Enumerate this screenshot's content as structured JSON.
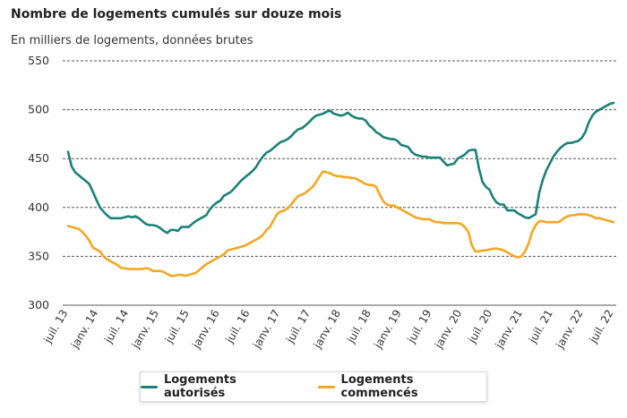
{
  "title": "Nombre de logements cumulés sur douze mois",
  "subtitle": "En milliers de logements, données brutes",
  "colors": {
    "autorises": "#1a8177",
    "commences": "#f5a623",
    "grid": "#555555"
  },
  "chart_data": {
    "type": "line",
    "ylim": [
      300,
      550
    ],
    "yticks": [
      "550",
      "500",
      "450",
      "400",
      "350",
      "300"
    ],
    "xticks": [
      "juil. 13",
      "janv. 14",
      "juil. 14",
      "janv. 15",
      "juil. 15",
      "janv. 16",
      "juil. 16",
      "janv. 17",
      "juil. 17",
      "janv. 18",
      "juil. 18",
      "janv. 19",
      "juil. 19",
      "janv. 20",
      "juil. 20",
      "janv. 21",
      "juil. 21",
      "janv. 22",
      "juil. 22"
    ],
    "grid": "horizontal dashed",
    "legend_position": "bottom",
    "series": [
      {
        "name": "Logements autorisés",
        "values": [
          457,
          442,
          436,
          433,
          430,
          427,
          424,
          416,
          408,
          400,
          396,
          392,
          389,
          389,
          389,
          389,
          390,
          391,
          390,
          391,
          389,
          386,
          383,
          382,
          382,
          381,
          379,
          376,
          374,
          377,
          377,
          376,
          380,
          380,
          380,
          383,
          386,
          388,
          390,
          392,
          398,
          402,
          405,
          407,
          412,
          414,
          416,
          420,
          424,
          428,
          431,
          434,
          437,
          441,
          447,
          452,
          456,
          458,
          461,
          464,
          467,
          468,
          470,
          473,
          477,
          480,
          481,
          484,
          487,
          491,
          494,
          495,
          496,
          498,
          499,
          496,
          495,
          494,
          495,
          497,
          494,
          492,
          491,
          491,
          489,
          484,
          481,
          477,
          475,
          472,
          471,
          470,
          470,
          468,
          464,
          463,
          462,
          457,
          454,
          453,
          452,
          452,
          451,
          451,
          451,
          451,
          447,
          443,
          444,
          445,
          450,
          452,
          454,
          458,
          459,
          459,
          440,
          426,
          421,
          418,
          410,
          405,
          403,
          403,
          397,
          397,
          397,
          394,
          392,
          390,
          389,
          391,
          393,
          415,
          428,
          438,
          445,
          452,
          457,
          461,
          464,
          466,
          466,
          467,
          468,
          471,
          477,
          487,
          494,
          498,
          500,
          502,
          504,
          506,
          507
        ]
      },
      {
        "name": "Logements commencés",
        "values": [
          381,
          380,
          379,
          378,
          375,
          371,
          366,
          359,
          357,
          355,
          350,
          347,
          345,
          343,
          341,
          338,
          338,
          337,
          337,
          337,
          337,
          337,
          338,
          337,
          335,
          335,
          335,
          334,
          332,
          330,
          330,
          331,
          331,
          330,
          331,
          332,
          333,
          336,
          339,
          342,
          344,
          346,
          348,
          350,
          352,
          356,
          357,
          358,
          359,
          360,
          361,
          363,
          365,
          367,
          369,
          372,
          377,
          380,
          387,
          393,
          396,
          397,
          399,
          403,
          408,
          412,
          413,
          415,
          418,
          421,
          426,
          432,
          437,
          436,
          435,
          433,
          432,
          432,
          431,
          431,
          430,
          430,
          428,
          426,
          424,
          423,
          423,
          421,
          413,
          406,
          403,
          402,
          402,
          400,
          398,
          396,
          394,
          392,
          390,
          389,
          388,
          388,
          388,
          386,
          385,
          385,
          384,
          384,
          384,
          384,
          384,
          383,
          380,
          375,
          361,
          355,
          355,
          356,
          356,
          357,
          358,
          358,
          357,
          356,
          354,
          352,
          350,
          349,
          350,
          355,
          363,
          375,
          382,
          386,
          386,
          385,
          385,
          385,
          385,
          386,
          389,
          391,
          392,
          392,
          393,
          393,
          393,
          392,
          391,
          389,
          389,
          388,
          387,
          386,
          385
        ]
      }
    ]
  },
  "legend": [
    {
      "label": "Logements autorisés",
      "color": "#1a8177"
    },
    {
      "label": "Logements commencés",
      "color": "#f5a623"
    }
  ]
}
